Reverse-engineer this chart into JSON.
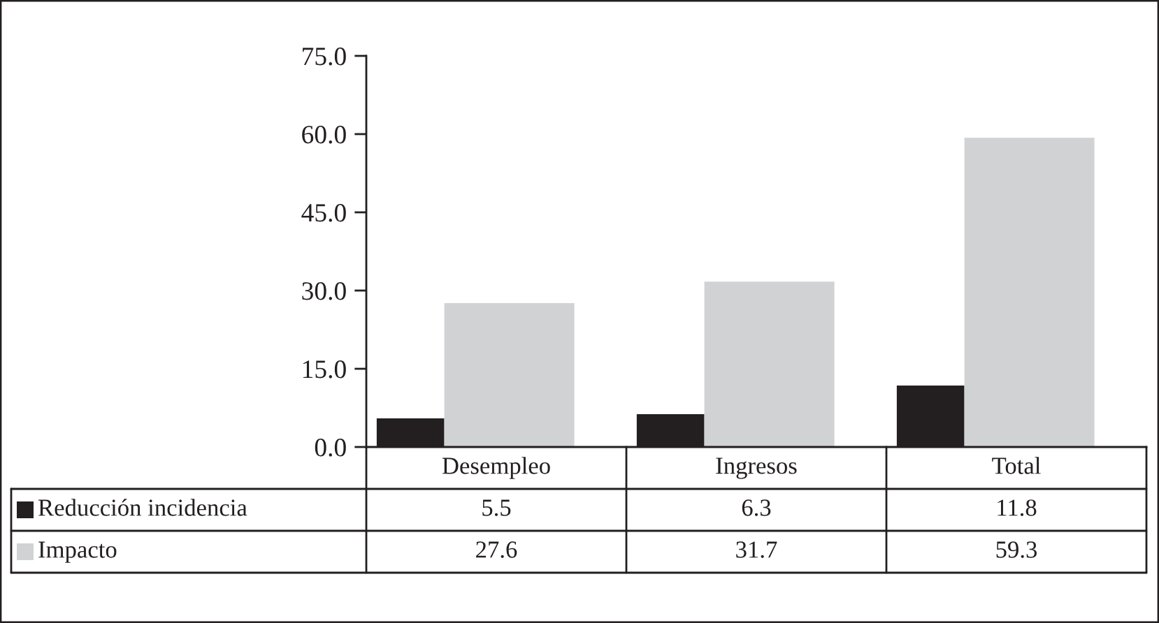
{
  "chart_data": {
    "type": "bar",
    "categories": [
      "Desempleo",
      "Ingresos",
      "Total"
    ],
    "series": [
      {
        "name": "Reducción incidencia",
        "color": "#231f20",
        "values": [
          5.5,
          6.3,
          11.8
        ]
      },
      {
        "name": "Impacto",
        "color": "#d1d2d4",
        "values": [
          27.6,
          31.7,
          59.3
        ]
      }
    ],
    "ylim": [
      0,
      75
    ],
    "yticks": [
      {
        "value": 0,
        "label": "0.0"
      },
      {
        "value": 15,
        "label": "15.0"
      },
      {
        "value": 30,
        "label": "30.0"
      },
      {
        "value": 45,
        "label": "45.0"
      },
      {
        "value": 60,
        "label": "60.0"
      },
      {
        "value": 75,
        "label": "75.0"
      }
    ],
    "data_labels": true,
    "legend": "bottom",
    "grid": false
  }
}
